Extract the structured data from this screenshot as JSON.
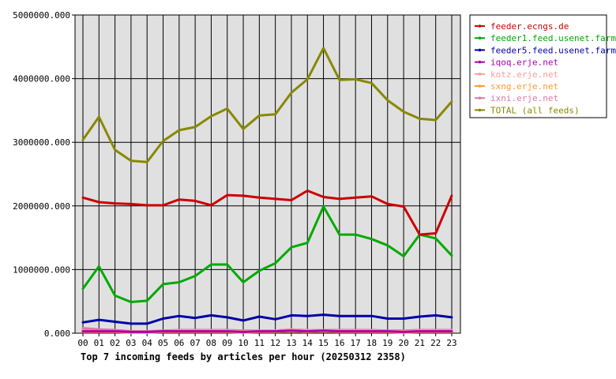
{
  "chart_data": {
    "type": "line",
    "title": "Top 7 incoming feeds by articles per hour (20250312 2358)",
    "x": [
      "00",
      "01",
      "02",
      "03",
      "04",
      "05",
      "06",
      "07",
      "08",
      "09",
      "10",
      "11",
      "12",
      "13",
      "14",
      "15",
      "16",
      "17",
      "18",
      "19",
      "20",
      "21",
      "22",
      "23"
    ],
    "ylim": [
      0,
      5000000
    ],
    "y_ticks": [
      0,
      1000000,
      2000000,
      3000000,
      4000000,
      5000000
    ],
    "y_tick_labels": [
      "0.000",
      "1000000.000",
      "2000000.000",
      "3000000.000",
      "4000000.000",
      "5000000.000"
    ],
    "grid": true,
    "legend_position": "right",
    "series": [
      {
        "name": "feeder.ecngs.de",
        "color": "#cc0000",
        "values": [
          2130000,
          2060000,
          2040000,
          2030000,
          2010000,
          2010000,
          2100000,
          2080000,
          2010000,
          2170000,
          2160000,
          2130000,
          2110000,
          2090000,
          2240000,
          2140000,
          2110000,
          2130000,
          2150000,
          2030000,
          1990000,
          1550000,
          1570000,
          2160000
        ]
      },
      {
        "name": "feeder1.feed.usenet.farm",
        "color": "#00aa00",
        "values": [
          700000,
          1050000,
          590000,
          490000,
          510000,
          770000,
          800000,
          900000,
          1080000,
          1080000,
          800000,
          980000,
          1100000,
          1350000,
          1420000,
          1990000,
          1550000,
          1550000,
          1480000,
          1380000,
          1210000,
          1550000,
          1490000,
          1220000
        ]
      },
      {
        "name": "feeder5.feed.usenet.farm",
        "color": "#0000aa",
        "values": [
          170000,
          210000,
          180000,
          150000,
          150000,
          230000,
          270000,
          240000,
          280000,
          250000,
          200000,
          260000,
          220000,
          280000,
          270000,
          290000,
          270000,
          270000,
          270000,
          230000,
          230000,
          260000,
          280000,
          250000
        ]
      },
      {
        "name": "iqoq.erje.net",
        "color": "#aa00aa",
        "values": [
          30000,
          30000,
          30000,
          20000,
          20000,
          30000,
          30000,
          30000,
          30000,
          30000,
          20000,
          30000,
          30000,
          40000,
          30000,
          40000,
          30000,
          30000,
          30000,
          30000,
          20000,
          30000,
          30000,
          30000
        ]
      },
      {
        "name": "kotz.erje.net",
        "color": "#ff9999",
        "values": [
          40000,
          30000,
          30000,
          20000,
          20000,
          30000,
          40000,
          40000,
          40000,
          40000,
          30000,
          40000,
          40000,
          60000,
          50000,
          50000,
          40000,
          40000,
          40000,
          30000,
          30000,
          40000,
          40000,
          40000
        ]
      },
      {
        "name": "sxng.erje.net",
        "color": "#ff9933",
        "values": [
          20000,
          20000,
          20000,
          10000,
          10000,
          20000,
          20000,
          20000,
          20000,
          20000,
          10000,
          20000,
          20000,
          30000,
          20000,
          30000,
          20000,
          20000,
          20000,
          20000,
          10000,
          20000,
          20000,
          20000
        ]
      },
      {
        "name": "ixni.erje.net",
        "color": "#dd77aa",
        "values": [
          80000,
          60000,
          50000,
          30000,
          30000,
          40000,
          50000,
          50000,
          50000,
          50000,
          40000,
          40000,
          40000,
          60000,
          50000,
          50000,
          50000,
          50000,
          50000,
          40000,
          40000,
          50000,
          50000,
          50000
        ]
      },
      {
        "name": "TOTAL (all feeds)",
        "color": "#888800",
        "values": [
          3040000,
          3400000,
          2880000,
          2710000,
          2690000,
          3020000,
          3190000,
          3240000,
          3410000,
          3530000,
          3210000,
          3420000,
          3440000,
          3780000,
          3990000,
          4480000,
          3980000,
          3990000,
          3930000,
          3660000,
          3480000,
          3370000,
          3350000,
          3640000
        ]
      }
    ]
  }
}
